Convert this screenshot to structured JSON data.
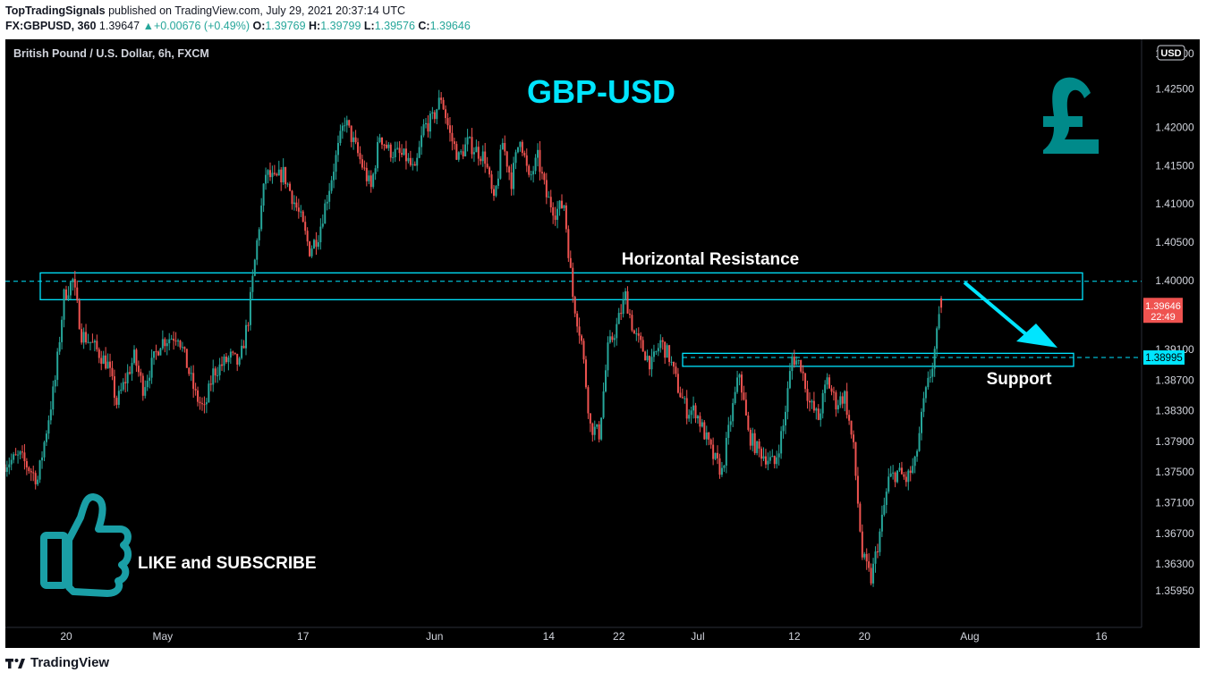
{
  "header": {
    "author": "TopTradingSignals",
    "published_text": "published on TradingView.com, July 29, 2021 20:37:14 UTC",
    "symbol": "FX:GBPUSD, 360",
    "last": "1.39647",
    "change": "+0.00676 (+0.49%)",
    "o_label": "O:",
    "o_value": "1.39769",
    "h_label": "H:",
    "h_value": "1.39799",
    "l_label": "L:",
    "l_value": "1.39576",
    "c_label": "C:",
    "c_value": "1.39646"
  },
  "chart_data": {
    "type": "candlestick",
    "subtitle": "British Pound / U.S. Dollar, 6h, FXCM",
    "title": "GBP-USD",
    "currency_badge": "USD",
    "ylim": [
      1.3565,
      1.4315
    ],
    "y_ticks": [
      "1.42500",
      "1.42000",
      "1.41500",
      "1.41000",
      "1.40500",
      "1.40000",
      "1.39100",
      "1.38700",
      "1.38300",
      "1.37900",
      "1.37500",
      "1.37100",
      "1.36700",
      "1.36300",
      "1.35950"
    ],
    "y_tick_values": [
      1.425,
      1.42,
      1.415,
      1.41,
      1.405,
      1.4,
      1.391,
      1.387,
      1.383,
      1.379,
      1.375,
      1.371,
      1.367,
      1.363,
      1.3595
    ],
    "top_tick": "1.43000",
    "x_ticks": [
      "20",
      "May",
      "17",
      "Jun",
      "14",
      "22",
      "Jul",
      "12",
      "20",
      "Aug",
      "16"
    ],
    "x_tick_dates": [
      "2021-04-20",
      "2021-05-01",
      "2021-05-17",
      "2021-06-01",
      "2021-06-14",
      "2021-06-22",
      "2021-07-01",
      "2021-07-12",
      "2021-07-20",
      "2021-08-01",
      "2021-08-16"
    ],
    "price_label": {
      "value": "1.39646",
      "countdown": "22:49",
      "color": "#ef5350"
    },
    "support_label": {
      "value": "1.38995",
      "color": "#00e5ff"
    },
    "resistance_zone": {
      "label": "Horizontal Resistance",
      "low": 1.3975,
      "high": 1.401,
      "line": 1.3999
    },
    "support_zone": {
      "label": "Support",
      "low": 1.3888,
      "high": 1.3905,
      "line": 1.38995
    },
    "anchors": [
      [
        "2021-04-13",
        1.376
      ],
      [
        "2021-04-15",
        1.377
      ],
      [
        "2021-04-17",
        1.374
      ],
      [
        "2021-04-19",
        1.387
      ],
      [
        "2021-04-20",
        1.398
      ],
      [
        "2021-04-21",
        1.4
      ],
      [
        "2021-04-22",
        1.393
      ],
      [
        "2021-04-23",
        1.392
      ],
      [
        "2021-04-25",
        1.389
      ],
      [
        "2021-04-26",
        1.384
      ],
      [
        "2021-04-27",
        1.387
      ],
      [
        "2021-04-28",
        1.39
      ],
      [
        "2021-04-29",
        1.386
      ],
      [
        "2021-05-01",
        1.392
      ],
      [
        "2021-05-03",
        1.393
      ],
      [
        "2021-05-05",
        1.385
      ],
      [
        "2021-05-06",
        1.383
      ],
      [
        "2021-05-07",
        1.388
      ],
      [
        "2021-05-09",
        1.39
      ],
      [
        "2021-05-10",
        1.389
      ],
      [
        "2021-05-11",
        1.395
      ],
      [
        "2021-05-12",
        1.405
      ],
      [
        "2021-05-13",
        1.414
      ],
      [
        "2021-05-14",
        1.413
      ],
      [
        "2021-05-15",
        1.414
      ],
      [
        "2021-05-17",
        1.408
      ],
      [
        "2021-05-18",
        1.404
      ],
      [
        "2021-05-19",
        1.406
      ],
      [
        "2021-05-20",
        1.411
      ],
      [
        "2021-05-21",
        1.416
      ],
      [
        "2021-05-22",
        1.421
      ],
      [
        "2021-05-24",
        1.415
      ],
      [
        "2021-05-25",
        1.412
      ],
      [
        "2021-05-26",
        1.419
      ],
      [
        "2021-05-27",
        1.417
      ],
      [
        "2021-05-29",
        1.416
      ],
      [
        "2021-05-30",
        1.414
      ],
      [
        "2021-05-31",
        1.42
      ],
      [
        "2021-06-01",
        1.421
      ],
      [
        "2021-06-02",
        1.424
      ],
      [
        "2021-06-03",
        1.419
      ],
      [
        "2021-06-04",
        1.416
      ],
      [
        "2021-06-05",
        1.418
      ],
      [
        "2021-06-07",
        1.416
      ],
      [
        "2021-06-08",
        1.41
      ],
      [
        "2021-06-09",
        1.418
      ],
      [
        "2021-06-10",
        1.413
      ],
      [
        "2021-06-11",
        1.419
      ],
      [
        "2021-06-12",
        1.413
      ],
      [
        "2021-06-13",
        1.416
      ],
      [
        "2021-06-14",
        1.411
      ],
      [
        "2021-06-15",
        1.409
      ],
      [
        "2021-06-16",
        1.41
      ],
      [
        "2021-06-17",
        1.398
      ],
      [
        "2021-06-18",
        1.392
      ],
      [
        "2021-06-19",
        1.381
      ],
      [
        "2021-06-20",
        1.38
      ],
      [
        "2021-06-21",
        1.391
      ],
      [
        "2021-06-22",
        1.394
      ],
      [
        "2021-06-23",
        1.398
      ],
      [
        "2021-06-24",
        1.393
      ],
      [
        "2021-06-26",
        1.389
      ],
      [
        "2021-06-27",
        1.392
      ],
      [
        "2021-06-28",
        1.39
      ],
      [
        "2021-06-29",
        1.386
      ],
      [
        "2021-06-30",
        1.383
      ],
      [
        "2021-07-01",
        1.383
      ],
      [
        "2021-07-03",
        1.377
      ],
      [
        "2021-07-04",
        1.375
      ],
      [
        "2021-07-05",
        1.382
      ],
      [
        "2021-07-06",
        1.388
      ],
      [
        "2021-07-07",
        1.38
      ],
      [
        "2021-07-08",
        1.378
      ],
      [
        "2021-07-09",
        1.377
      ],
      [
        "2021-07-10",
        1.376
      ],
      [
        "2021-07-11",
        1.381
      ],
      [
        "2021-07-12",
        1.39
      ],
      [
        "2021-07-13",
        1.389
      ],
      [
        "2021-07-14",
        1.384
      ],
      [
        "2021-07-15",
        1.382
      ],
      [
        "2021-07-16",
        1.387
      ],
      [
        "2021-07-17",
        1.384
      ],
      [
        "2021-07-18",
        1.385
      ],
      [
        "2021-07-19",
        1.378
      ],
      [
        "2021-07-20",
        1.364
      ],
      [
        "2021-07-21",
        1.361
      ],
      [
        "2021-07-22",
        1.367
      ],
      [
        "2021-07-23",
        1.374
      ],
      [
        "2021-07-24",
        1.375
      ],
      [
        "2021-07-25",
        1.374
      ],
      [
        "2021-07-26",
        1.376
      ],
      [
        "2021-07-27",
        1.384
      ],
      [
        "2021-07-28",
        1.389
      ],
      [
        "2021-07-29",
        1.3965
      ]
    ]
  },
  "annotations": {
    "like_text": "LIKE and SUBSCRIBE"
  },
  "colors": {
    "up": "#26a69a",
    "down": "#ef5350",
    "accent": "#00e5ff",
    "title": "#00e5ff",
    "pound": "#008a8a",
    "thumb": "#1a9fa6"
  },
  "icons": {
    "pound": "pound-sign-icon",
    "thumb": "thumbs-up-icon",
    "logo": "tradingview-logo-icon"
  },
  "footer": {
    "brand": "TradingView"
  }
}
